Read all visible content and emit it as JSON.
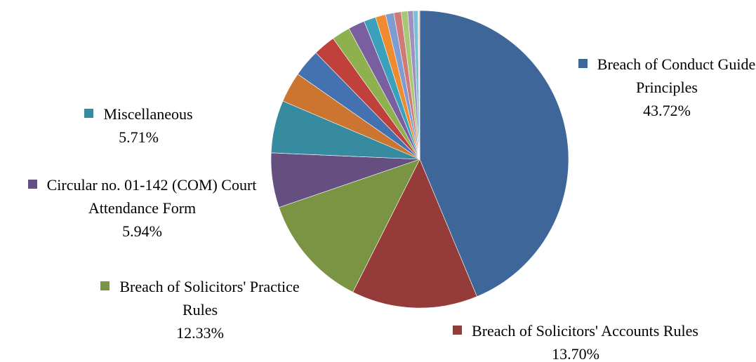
{
  "chart_data": {
    "type": "pie",
    "categories": [
      "Breach of Conduct Guide Principles",
      "Breach of Solicitors' Accounts Rules",
      "Breach of Solicitors' Practice Rules",
      "Circular no. 01-142 (COM) Court Attendance Form",
      "Miscellaneous",
      null,
      null,
      null,
      null,
      null,
      null,
      null,
      null,
      null,
      null,
      null,
      null,
      null,
      null
    ],
    "values": [
      43.72,
      13.7,
      12.33,
      5.94,
      5.71,
      3.3,
      3.0,
      2.4,
      2.0,
      1.8,
      1.3,
      1.1,
      0.9,
      0.8,
      0.7,
      0.6,
      0.5,
      0.1,
      0.1
    ],
    "value_labels": [
      "43.72%",
      "13.70%",
      "12.33%",
      "5.94%",
      "5.71%",
      null,
      null,
      null,
      null,
      null,
      null,
      null,
      null,
      null,
      null,
      null,
      null,
      null,
      null
    ],
    "colors": [
      "#3f6698",
      "#953b3a",
      "#7a9444",
      "#654f80",
      "#378ba0",
      "#cc7530",
      "#4472b0",
      "#c0403c",
      "#8fb04e",
      "#7a5fa0",
      "#3aa0bc",
      "#f08a30",
      "#7e9cd0",
      "#d07a78",
      "#a8c878",
      "#a090c0",
      "#78c0d8",
      "#f8b880",
      "#b8c8e8"
    ]
  }
}
